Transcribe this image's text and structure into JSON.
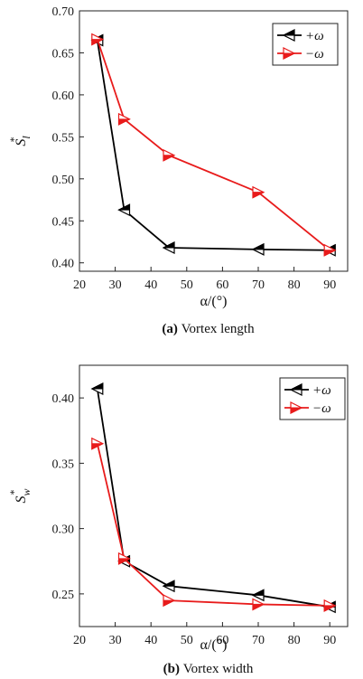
{
  "chart_data": [
    {
      "type": "line",
      "caption_tag": "(a)",
      "caption_text": "Vortex length",
      "xlabel": "α/(°)",
      "ylabel_main": "S",
      "ylabel_sub": "l",
      "ylabel_sup": "*",
      "xlim": [
        20,
        95
      ],
      "ylim": [
        0.39,
        0.7
      ],
      "xticks": [
        20,
        30,
        40,
        50,
        60,
        70,
        80,
        90
      ],
      "yticks": [
        0.4,
        0.45,
        0.5,
        0.55,
        0.6,
        0.65,
        0.7
      ],
      "ytick_labels": [
        "0.40",
        "0.45",
        "0.50",
        "0.55",
        "0.60",
        "0.65",
        "0.70"
      ],
      "legend_position": "top-right",
      "series": [
        {
          "name": "+ω",
          "color": "#000000",
          "marker": "triangle-left",
          "x": [
            25,
            32.5,
            45,
            70,
            90
          ],
          "y": [
            0.665,
            0.463,
            0.418,
            0.416,
            0.415
          ]
        },
        {
          "name": "−ω",
          "color": "#e81b1b",
          "marker": "triangle-right",
          "x": [
            25,
            32.5,
            45,
            70,
            90
          ],
          "y": [
            0.666,
            0.571,
            0.528,
            0.484,
            0.415
          ]
        }
      ]
    },
    {
      "type": "line",
      "caption_tag": "(b)",
      "caption_text": "Vortex width",
      "xlabel": "α/(°)",
      "ylabel_main": "S",
      "ylabel_sub": "w",
      "ylabel_sup": "*",
      "xlim": [
        20,
        95
      ],
      "ylim": [
        0.225,
        0.425
      ],
      "xticks": [
        20,
        30,
        40,
        50,
        60,
        70,
        80,
        90
      ],
      "yticks": [
        0.25,
        0.3,
        0.35,
        0.4
      ],
      "ytick_labels": [
        "0.25",
        "0.30",
        "0.35",
        "0.40"
      ],
      "legend_position": "top-right",
      "series": [
        {
          "name": "+ω",
          "color": "#000000",
          "marker": "triangle-left",
          "x": [
            25,
            32.5,
            45,
            70,
            90
          ],
          "y": [
            0.407,
            0.275,
            0.256,
            0.249,
            0.24
          ]
        },
        {
          "name": "−ω",
          "color": "#e81b1b",
          "marker": "triangle-right",
          "x": [
            25,
            32.5,
            45,
            70,
            90
          ],
          "y": [
            0.365,
            0.277,
            0.245,
            0.242,
            0.241
          ]
        }
      ]
    }
  ]
}
